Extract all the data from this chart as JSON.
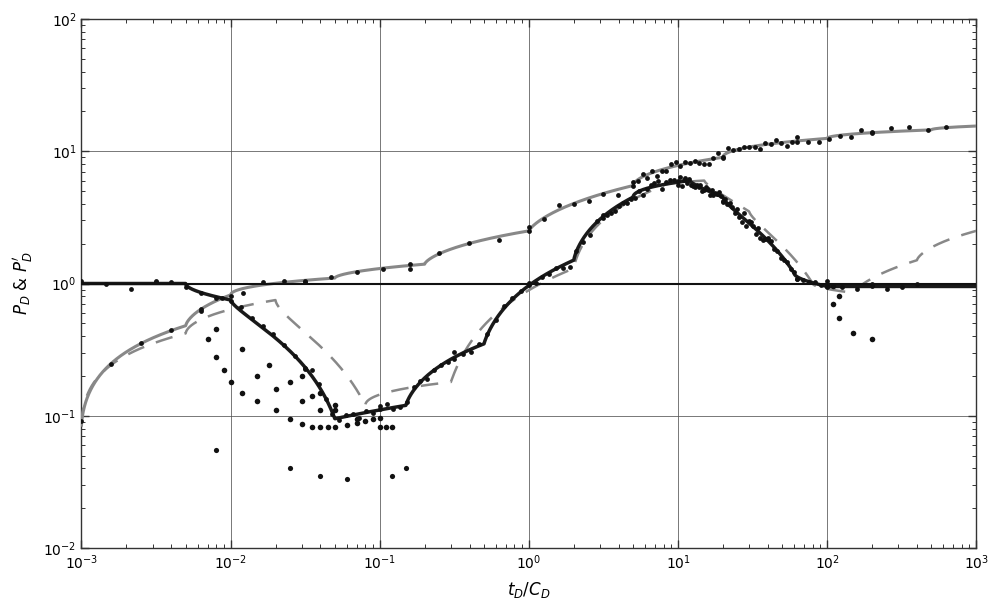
{
  "xlabel": "$t_D/C_D$",
  "ylabel": "$P_D$ & $P_D'$",
  "xlim": [
    0.001,
    1000.0
  ],
  "ylim": [
    0.01,
    100.0
  ],
  "background_color": "#ffffff",
  "grid_color": "#555555",
  "line_color_dark": "#1a1a1a",
  "line_color_gray": "#888888",
  "dot_color": "#111111",
  "hline_y": 1.0,
  "hline_color": "#111111"
}
